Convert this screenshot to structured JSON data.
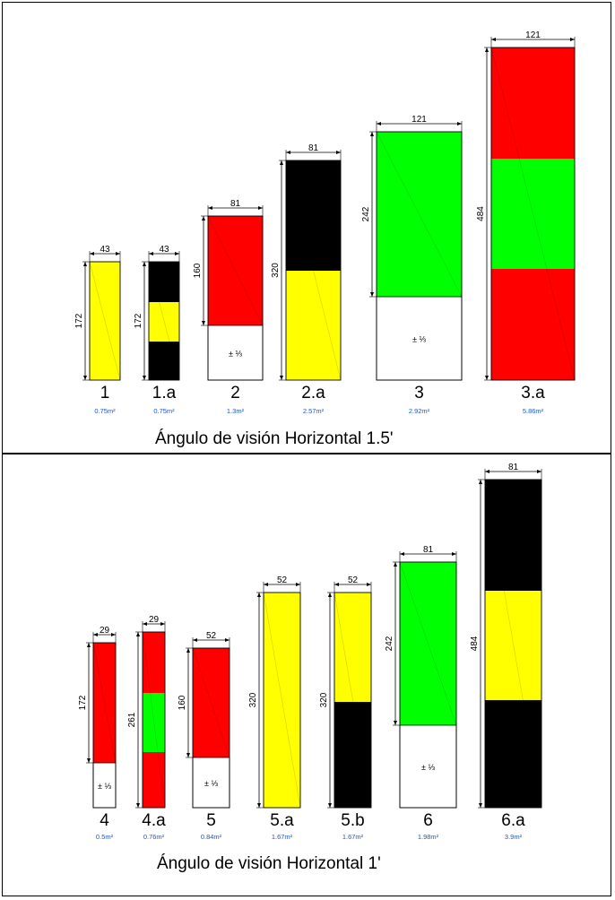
{
  "colors": {
    "yellow": "#ffff00",
    "red": "#ff0000",
    "green": "#00ff00",
    "black": "#000000",
    "white": "#ffffff",
    "area_label": "#2255cc"
  },
  "fraction_label": "± ⅓",
  "top_panel": {
    "caption": "Ángulo de visión Horizontal 1.5'",
    "signs": [
      {
        "name": "1",
        "area": "0.75m²",
        "width_label": "43",
        "height_label": "172",
        "segments": [
          "yellow"
        ],
        "base": false
      },
      {
        "name": "1.a",
        "area": "0.75m²",
        "width_label": "43",
        "height_label": "172",
        "segments": [
          "black",
          "yellow",
          "black"
        ],
        "base": false
      },
      {
        "name": "2",
        "area": "1.3m²",
        "width_label": "81",
        "height_label": "160",
        "segments": [
          "red"
        ],
        "base": true
      },
      {
        "name": "2.a",
        "area": "2.57m²",
        "width_label": "81",
        "height_label": "320",
        "segments": [
          "black",
          "yellow"
        ],
        "base": false
      },
      {
        "name": "3",
        "area": "2.92m²",
        "width_label": "121",
        "height_label": "242",
        "segments": [
          "green"
        ],
        "base": true
      },
      {
        "name": "3.a",
        "area": "5.86m²",
        "width_label": "121",
        "height_label": "484",
        "segments": [
          "red",
          "green",
          "red"
        ],
        "base": false
      }
    ]
  },
  "bottom_panel": {
    "caption": "Ángulo de visión Horizontal 1'",
    "signs": [
      {
        "name": "4",
        "area": "0.5m²",
        "width_label": "29",
        "height_label": "172",
        "segments": [
          "red"
        ],
        "base": true
      },
      {
        "name": "4.a",
        "area": "0.76m²",
        "width_label": "29",
        "height_label": "261",
        "segments": [
          "red",
          "green",
          "red"
        ],
        "base": false
      },
      {
        "name": "5",
        "area": "0.84m²",
        "width_label": "52",
        "height_label": "160",
        "segments": [
          "red"
        ],
        "base": true
      },
      {
        "name": "5.a",
        "area": "1.67m²",
        "width_label": "52",
        "height_label": "320",
        "segments": [
          "yellow"
        ],
        "base": false
      },
      {
        "name": "5.b",
        "area": "1.67m²",
        "width_label": "52",
        "height_label": "320",
        "segments": [
          "yellow",
          "black"
        ],
        "base": false
      },
      {
        "name": "6",
        "area": "1.98m²",
        "width_label": "81",
        "height_label": "242",
        "segments": [
          "green"
        ],
        "base": true
      },
      {
        "name": "6.a",
        "area": "3.9m²",
        "width_label": "81",
        "height_label": "484",
        "segments": [
          "black",
          "yellow",
          "black"
        ],
        "base": false
      }
    ]
  }
}
